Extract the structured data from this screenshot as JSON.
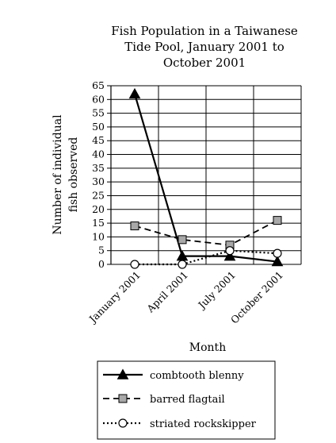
{
  "chart_data": {
    "type": "line",
    "title_lines": [
      "Fish Population in a Taiwanese",
      "Tide Pool, January 2001 to",
      "October 2001"
    ],
    "xlabel": "Month",
    "ylabel_lines": [
      "Number of individual",
      "fish observed"
    ],
    "categories": [
      "January 2001",
      "April 2001",
      "July 2001",
      "October 2001"
    ],
    "yticks": [
      "0",
      "5",
      "10",
      "15",
      "20",
      "25",
      "30",
      "35",
      "40",
      "45",
      "50",
      "55",
      "60",
      "65"
    ],
    "ylim": [
      0,
      65
    ],
    "grid": true,
    "legend_position": "bottom",
    "series": [
      {
        "name": "combtooth blenny",
        "values": [
          62,
          3,
          3,
          1
        ],
        "line_style": "solid",
        "marker": "filled-triangle"
      },
      {
        "name": "barred flagtail",
        "values": [
          14,
          9,
          7,
          16
        ],
        "line_style": "dashed",
        "marker": "gray-square"
      },
      {
        "name": "striated rockskipper",
        "values": [
          0,
          0,
          5,
          4
        ],
        "line_style": "dotted",
        "marker": "open-circle"
      }
    ]
  }
}
